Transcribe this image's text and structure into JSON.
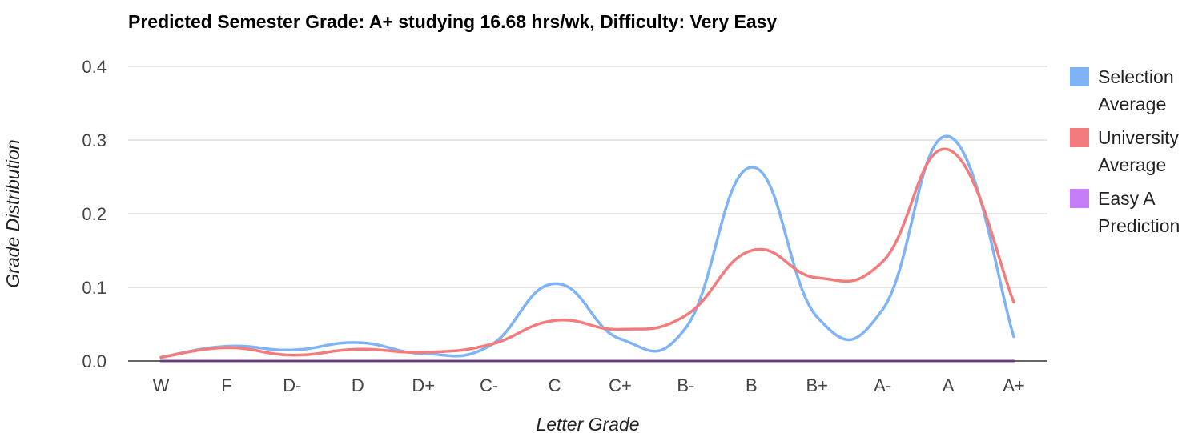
{
  "chart_data": {
    "type": "line",
    "title": "Predicted Semester Grade: A+ studying 16.68 hrs/wk, Difficulty: Very Easy",
    "xlabel": "Letter Grade",
    "ylabel": "Grade Distribution",
    "ylim": [
      0,
      0.4
    ],
    "yticks": [
      "0.0",
      "0.1",
      "0.2",
      "0.3",
      "0.4"
    ],
    "categories": [
      "W",
      "F",
      "D-",
      "D",
      "D+",
      "C-",
      "C",
      "C+",
      "B-",
      "B",
      "B+",
      "A-",
      "A",
      "A+"
    ],
    "grid": true,
    "legend_position": "right",
    "series": [
      {
        "name": "Selection Average",
        "legend_lines": [
          "Selection",
          "Average"
        ],
        "color": "#7eb4f7",
        "values": [
          0.005,
          0.02,
          0.015,
          0.025,
          0.01,
          0.02,
          0.105,
          0.03,
          0.045,
          0.263,
          0.06,
          0.07,
          0.305,
          0.033
        ]
      },
      {
        "name": "University Average",
        "legend_lines": [
          "University",
          "Average"
        ],
        "color": "#f47b7b",
        "values": [
          0.005,
          0.018,
          0.008,
          0.016,
          0.012,
          0.022,
          0.055,
          0.043,
          0.062,
          0.15,
          0.113,
          0.135,
          0.287,
          0.08
        ]
      },
      {
        "name": "Easy A Prediction",
        "legend_lines": [
          "Easy A",
          "Prediction"
        ],
        "color": "#c77cf7",
        "values": [
          0,
          0,
          0,
          0,
          0,
          0,
          0,
          0,
          0,
          0,
          0,
          0,
          0,
          0
        ]
      }
    ]
  }
}
